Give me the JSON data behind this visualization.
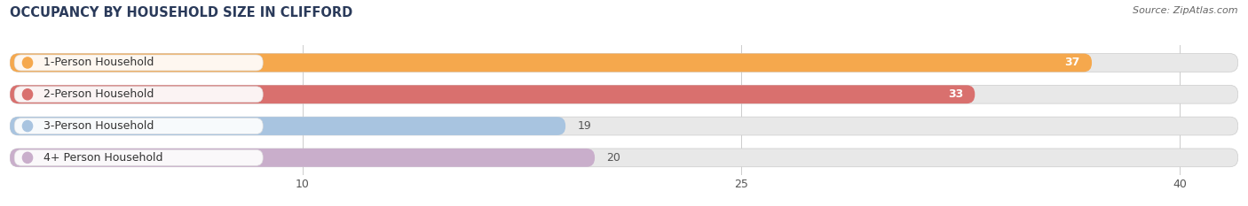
{
  "title": "OCCUPANCY BY HOUSEHOLD SIZE IN CLIFFORD",
  "source": "Source: ZipAtlas.com",
  "categories": [
    "1-Person Household",
    "2-Person Household",
    "3-Person Household",
    "4+ Person Household"
  ],
  "values": [
    37,
    33,
    19,
    20
  ],
  "bar_colors": [
    "#F5A84D",
    "#D9706E",
    "#A8C4E0",
    "#C9AECB"
  ],
  "label_colors": [
    "#333333",
    "#333333",
    "#333333",
    "#333333"
  ],
  "value_inside_color": [
    "white",
    "white",
    "#555555",
    "#555555"
  ],
  "xlim_max": 42,
  "xticks": [
    10,
    25,
    40
  ],
  "background_color": "#ffffff",
  "bar_bg_color": "#e8e8e8",
  "title_fontsize": 10.5,
  "source_fontsize": 8,
  "label_fontsize": 9,
  "value_fontsize": 9,
  "tick_fontsize": 9,
  "fig_width": 14.06,
  "fig_height": 2.33
}
